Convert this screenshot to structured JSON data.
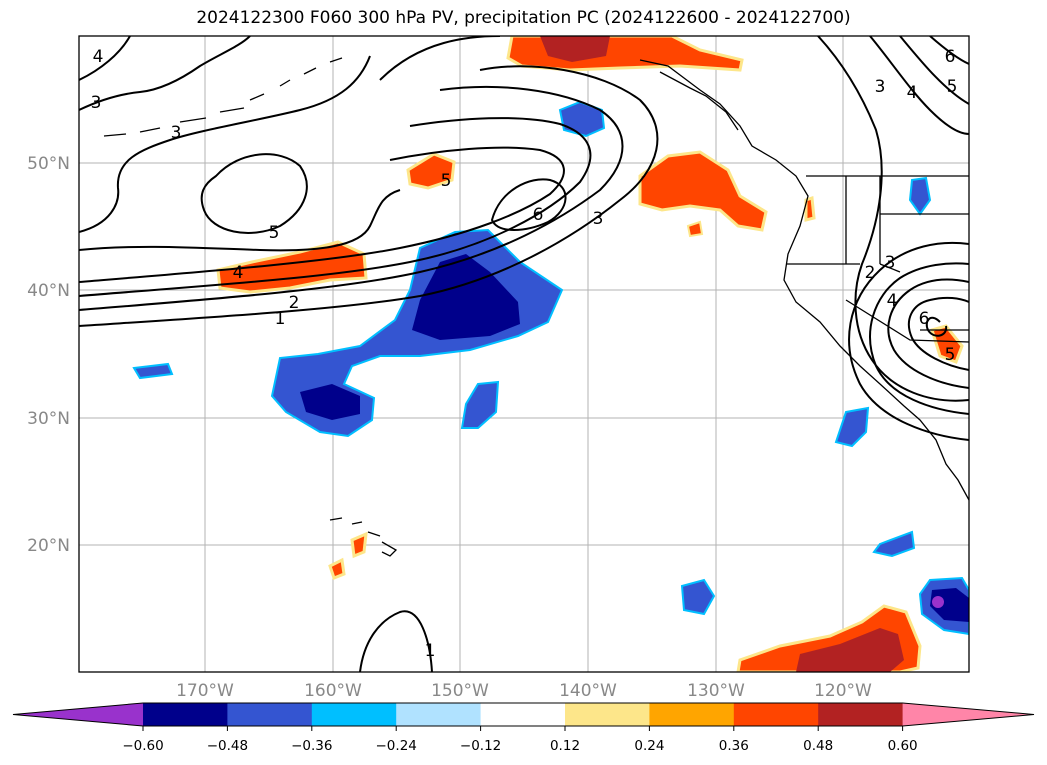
{
  "title": "2024122300 F060 300 hPa PV, precipitation PC (2024122600 - 2024122700)",
  "map": {
    "lat_labels": [
      "50°N",
      "40°N",
      "30°N",
      "20°N"
    ],
    "lon_labels": [
      "170°W",
      "160°W",
      "150°W",
      "140°W",
      "130°W",
      "120°W"
    ],
    "contour_labels": [
      "4",
      "3",
      "3",
      "5",
      "5",
      "4",
      "2",
      "1",
      "6",
      "3",
      "5",
      "6",
      "3",
      "4",
      "5",
      "2",
      "3",
      "4",
      "6",
      "5",
      "1"
    ]
  },
  "colorbar": {
    "ticks": [
      "−0.60",
      "−0.48",
      "−0.36",
      "−0.24",
      "−0.12",
      "0.12",
      "0.24",
      "0.36",
      "0.48",
      "0.60"
    ],
    "colors": [
      "#9932cc",
      "#00008b",
      "#3455d1",
      "#00bfff",
      "#b0e2ff",
      "#ffffff",
      "#fde68a",
      "#ffa500",
      "#ff4500",
      "#b22222",
      "#ff85a8"
    ]
  }
}
